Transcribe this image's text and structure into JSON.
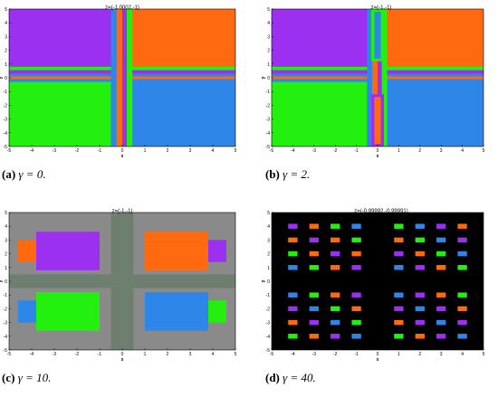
{
  "x_ticks": [
    "-5",
    "-4",
    "-3",
    "-2",
    "-1",
    "0",
    "1",
    "2",
    "3",
    "4",
    "5"
  ],
  "y_ticks": [
    "5",
    "4",
    "3",
    "2",
    "1",
    "0",
    "-1",
    "-2",
    "-3",
    "-4",
    "-5"
  ],
  "x_label": "x",
  "y_label": "y",
  "colors": {
    "purple": "#9b30f0",
    "orange": "#ff6a10",
    "green": "#24f010",
    "blue": "#2e86e8",
    "gray": "#8a8a8a",
    "black": "#000000"
  },
  "panels": [
    {
      "title": "z=(-1.0002,-1)",
      "caption_label": "(a)",
      "caption_math": "γ = 0.",
      "style": "gamma0"
    },
    {
      "title": "z=(-1,-1)",
      "caption_label": "(b)",
      "caption_math": "γ = 2.",
      "style": "gamma2"
    },
    {
      "title": "z=(-1,-1)",
      "caption_label": "(c)",
      "caption_math": "γ = 10.",
      "style": "gamma10"
    },
    {
      "title": "z=(-0.99992,-0.99991)",
      "caption_label": "(d)",
      "caption_math": "γ = 40.",
      "style": "gamma40"
    }
  ]
}
